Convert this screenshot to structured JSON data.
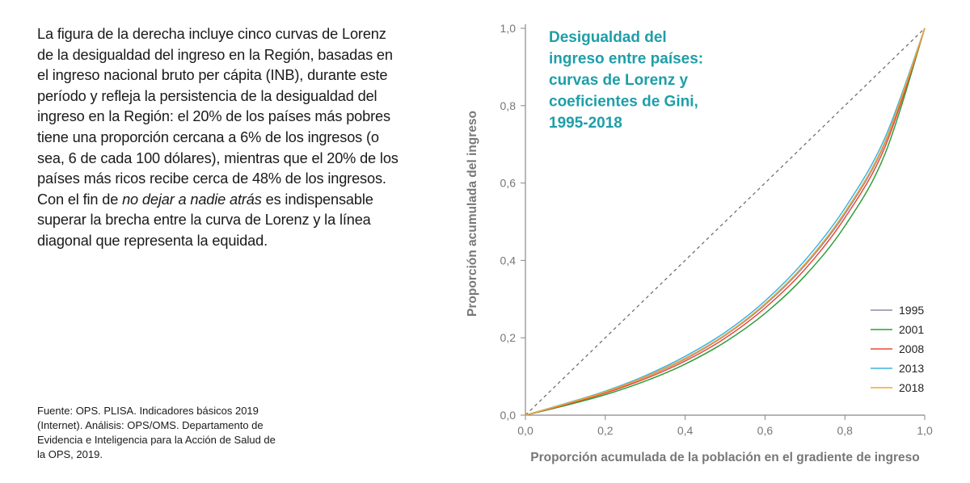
{
  "text": {
    "p1": "La figura de la derecha incluye cinco curvas de Lorenz de la desigualdad del ingreso en la Región, basadas en el ingreso nacional bruto per cápita (INB), durante este período y refleja la persistencia de la desigualdad del ingreso en la Región: el 20% de los países más pobres tiene una proporción cercana a 6% de los ingresos (o sea, 6 de cada 100 dólares), mientras que el 20% de los países más ricos recibe cerca de 48% de los ingresos. Con el fin de ",
    "p1_italic": "no dejar a nadie atrás",
    "p2": " es indispensable superar la brecha entre la curva de Lorenz y la línea diagonal que representa la equidad.",
    "source": "Fuente: OPS. PLISA. Indicadores básicos 2019 (Internet). Análisis: OPS/OMS. Departamento de Evidencia e Inteligencia para la Acción de Salud de la OPS, 2019."
  },
  "chart_data": {
    "type": "line",
    "title_lines": [
      "Desigualdad del",
      "ingreso entre países:",
      "curvas de Lorenz y",
      "coeficientes de Gini,",
      "1995-2018"
    ],
    "xlabel": "Proporción acumulada de la población en el gradiente de ingreso",
    "ylabel": "Proporción acumulada del ingreso",
    "xlim": [
      0,
      1
    ],
    "ylim": [
      0,
      1
    ],
    "xticks": [
      "0,0",
      "0,2",
      "0,4",
      "0,6",
      "0,8",
      "1,0"
    ],
    "yticks": [
      "0,0",
      "0,2",
      "0,4",
      "0,6",
      "0,8",
      "1,0"
    ],
    "grid": false,
    "legend_position": "bottom-right",
    "x": [
      0,
      0.1,
      0.2,
      0.3,
      0.4,
      0.5,
      0.6,
      0.7,
      0.8,
      0.9,
      1.0
    ],
    "series": [
      {
        "name": "1995",
        "color": "#8a8aa8",
        "values": [
          0,
          0.028,
          0.059,
          0.098,
          0.145,
          0.206,
          0.285,
          0.387,
          0.52,
          0.702,
          1.0
        ]
      },
      {
        "name": "2001",
        "color": "#2e9e3a",
        "values": [
          0,
          0.025,
          0.053,
          0.088,
          0.132,
          0.189,
          0.263,
          0.36,
          0.489,
          0.674,
          1.0
        ]
      },
      {
        "name": "2008",
        "color": "#e84a3a",
        "values": [
          0,
          0.027,
          0.057,
          0.094,
          0.14,
          0.199,
          0.277,
          0.377,
          0.51,
          0.692,
          1.0
        ]
      },
      {
        "name": "2013",
        "color": "#3db4e0",
        "values": [
          0,
          0.03,
          0.062,
          0.102,
          0.152,
          0.214,
          0.295,
          0.4,
          0.535,
          0.716,
          1.0
        ]
      },
      {
        "name": "2018",
        "color": "#f4a531",
        "values": [
          0,
          0.029,
          0.06,
          0.099,
          0.147,
          0.208,
          0.288,
          0.391,
          0.525,
          0.706,
          1.0
        ]
      }
    ],
    "equality_line": {
      "color": "#666666"
    }
  }
}
